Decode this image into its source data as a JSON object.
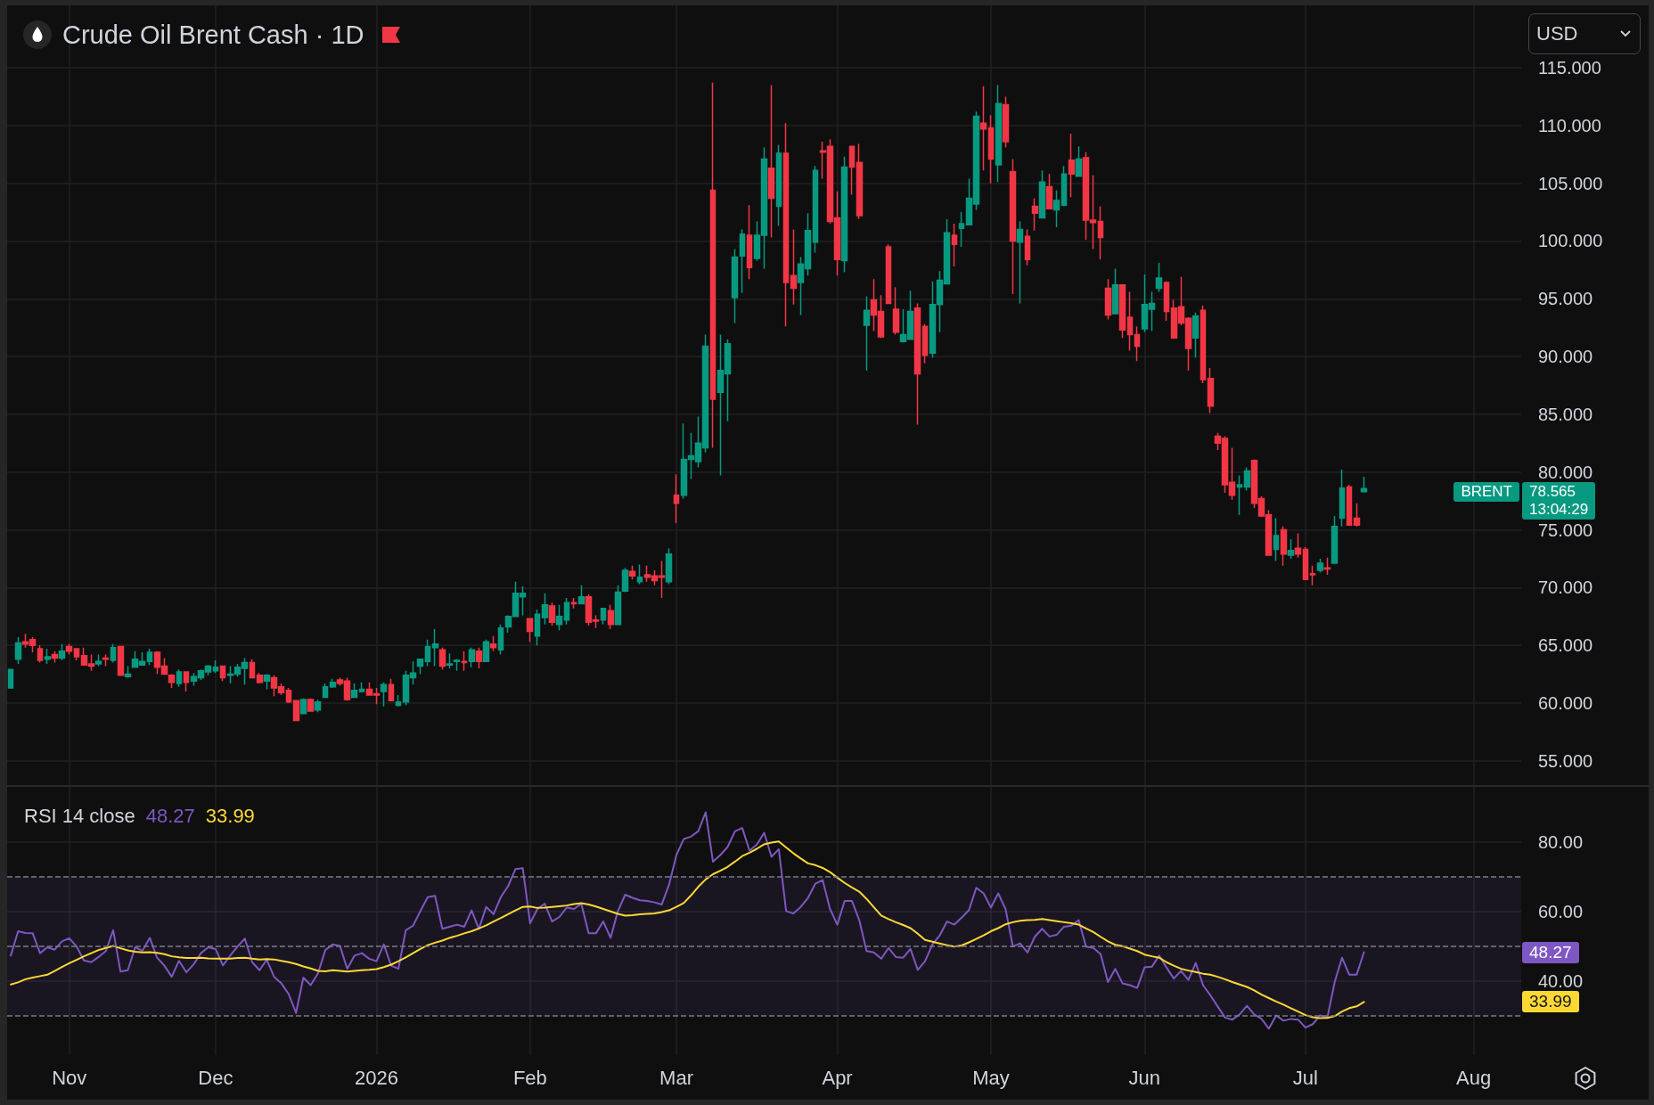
{
  "chart_data": [
    {
      "type": "candlestick",
      "title": "Crude Oil Brent Cash · 1D",
      "ylabel": "USD",
      "categories": [
        null,
        null,
        null,
        null,
        null,
        null,
        null,
        null,
        null,
        null,
        null,
        null,
        null,
        null,
        null,
        null,
        null,
        null,
        null,
        null,
        null,
        null,
        null,
        null,
        null,
        null,
        null,
        null,
        null,
        null,
        null,
        null,
        null,
        null,
        null,
        null,
        null,
        null,
        null,
        null,
        null,
        null,
        null,
        null,
        null,
        null,
        null,
        null,
        null,
        null,
        null,
        null,
        null,
        null,
        null,
        null,
        null,
        null,
        null,
        null,
        null,
        null,
        null,
        null,
        null,
        null,
        null,
        null,
        null,
        null,
        null,
        null,
        null,
        null,
        null,
        null,
        null,
        null,
        null,
        null,
        null,
        null,
        null,
        null,
        null,
        null,
        null,
        null,
        null,
        null,
        null,
        null,
        null,
        null,
        null,
        null,
        null,
        null,
        null,
        null,
        null,
        null,
        null,
        null,
        null,
        null,
        null,
        null,
        null,
        null,
        null,
        null,
        null,
        null,
        null,
        null,
        null,
        null,
        null,
        null,
        null,
        null,
        null,
        null,
        null,
        null,
        null,
        null,
        null,
        null,
        null,
        null,
        null,
        null,
        null,
        null,
        null,
        null,
        null,
        null,
        null,
        null,
        null,
        null,
        null,
        null,
        null,
        null,
        null,
        null,
        null,
        null,
        null,
        null,
        null,
        null,
        null,
        null,
        null,
        null,
        null,
        null,
        null,
        null,
        null,
        null,
        null,
        null,
        null,
        null,
        null,
        null,
        null,
        null,
        null,
        null,
        null,
        null,
        null,
        null,
        null,
        null,
        null,
        null,
        null,
        null,
        null,
        null,
        null,
        null,
        null,
        null,
        null,
        null,
        null,
        null,
        null,
        null,
        null,
        null,
        null,
        null,
        null,
        null,
        null,
        null,
        null
      ],
      "ohlc": [
        [
          61.3,
          62.9,
          61.3,
          62.9
        ],
        [
          63.8,
          65.7,
          63.4,
          65.2
        ],
        [
          65.3,
          66.0,
          64.8,
          65.1
        ],
        [
          65.5,
          65.7,
          64.4,
          65.0
        ],
        [
          64.7,
          65.0,
          63.5,
          63.7
        ],
        [
          63.8,
          64.7,
          63.4,
          64.0
        ],
        [
          64.2,
          64.5,
          63.5,
          63.9
        ],
        [
          63.9,
          65.1,
          63.7,
          64.5
        ],
        [
          64.9,
          65.1,
          64.2,
          64.5
        ],
        [
          64.7,
          64.7,
          63.7,
          64.0
        ],
        [
          64.1,
          64.8,
          63.3,
          63.3
        ],
        [
          63.4,
          64.2,
          62.8,
          63.2
        ],
        [
          63.4,
          64.2,
          63.2,
          63.6
        ],
        [
          63.9,
          64.2,
          63.2,
          63.8
        ],
        [
          63.7,
          65.1,
          63.5,
          64.8
        ],
        [
          64.9,
          64.9,
          62.4,
          62.4
        ],
        [
          62.3,
          63.2,
          62.2,
          62.5
        ],
        [
          63.1,
          64.5,
          63.1,
          63.8
        ],
        [
          63.3,
          64.4,
          63.3,
          63.6
        ],
        [
          63.6,
          64.7,
          63.3,
          64.4
        ],
        [
          64.4,
          64.5,
          62.5,
          63.1
        ],
        [
          63.2,
          63.9,
          62.5,
          62.5
        ],
        [
          62.4,
          62.5,
          61.3,
          61.8
        ],
        [
          61.7,
          62.9,
          61.4,
          62.7
        ],
        [
          62.7,
          62.7,
          61.0,
          61.8
        ],
        [
          61.9,
          62.6,
          61.5,
          62.3
        ],
        [
          62.2,
          62.9,
          62.0,
          62.8
        ],
        [
          62.7,
          63.3,
          62.4,
          63.2
        ],
        [
          62.8,
          63.7,
          62.6,
          63.1
        ],
        [
          63.2,
          63.2,
          61.9,
          62.2
        ],
        [
          62.4,
          63.2,
          61.7,
          62.5
        ],
        [
          62.5,
          63.4,
          62.3,
          63.1
        ],
        [
          63.0,
          63.9,
          61.6,
          63.5
        ],
        [
          63.5,
          63.8,
          62.2,
          62.2
        ],
        [
          62.4,
          62.6,
          61.7,
          61.8
        ],
        [
          61.9,
          62.5,
          61.2,
          62.4
        ],
        [
          62.2,
          62.4,
          60.6,
          61.3
        ],
        [
          61.4,
          61.7,
          60.7,
          60.9
        ],
        [
          61.1,
          61.3,
          60.0,
          60.1
        ],
        [
          60.2,
          60.2,
          58.5,
          58.5
        ],
        [
          59.1,
          60.4,
          59.1,
          60.3
        ],
        [
          60.3,
          60.4,
          59.3,
          59.3
        ],
        [
          59.4,
          60.3,
          59.2,
          60.1
        ],
        [
          60.5,
          61.7,
          60.5,
          61.4
        ],
        [
          61.4,
          62.1,
          61.3,
          61.8
        ],
        [
          62.0,
          62.2,
          61.5,
          61.7
        ],
        [
          61.9,
          62.2,
          60.2,
          60.3
        ],
        [
          60.5,
          61.7,
          60.5,
          61.1
        ],
        [
          61.0,
          61.8,
          60.9,
          61.2
        ],
        [
          61.2,
          61.8,
          60.7,
          60.7
        ],
        [
          60.8,
          61.3,
          59.9,
          60.7
        ],
        [
          61.0,
          61.8,
          59.7,
          61.6
        ],
        [
          61.6,
          62.1,
          60.2,
          60.2
        ],
        [
          59.8,
          60.7,
          59.7,
          60.1
        ],
        [
          60.1,
          62.8,
          59.8,
          62.4
        ],
        [
          62.2,
          63.6,
          61.6,
          62.6
        ],
        [
          63.2,
          63.8,
          62.5,
          63.8
        ],
        [
          63.6,
          65.5,
          63.2,
          64.9
        ],
        [
          64.8,
          66.4,
          63.2,
          65.1
        ],
        [
          64.6,
          64.8,
          62.9,
          63.2
        ],
        [
          63.3,
          64.3,
          63.0,
          63.4
        ],
        [
          63.6,
          63.8,
          62.8,
          63.7
        ],
        [
          63.6,
          64.5,
          62.8,
          63.5
        ],
        [
          63.6,
          64.8,
          63.1,
          64.6
        ],
        [
          64.5,
          64.8,
          63.0,
          63.6
        ],
        [
          63.6,
          65.5,
          63.6,
          65.3
        ],
        [
          65.1,
          65.8,
          64.5,
          64.8
        ],
        [
          64.6,
          66.8,
          64.2,
          66.5
        ],
        [
          66.6,
          67.6,
          66.1,
          67.5
        ],
        [
          67.5,
          70.5,
          67.5,
          69.5
        ],
        [
          69.2,
          70.1,
          67.6,
          69.5
        ],
        [
          67.3,
          67.3,
          65.3,
          66.2
        ],
        [
          65.8,
          68.1,
          65.0,
          67.7
        ],
        [
          67.4,
          69.5,
          66.8,
          68.5
        ],
        [
          68.4,
          68.7,
          66.7,
          67.0
        ],
        [
          66.8,
          68.5,
          66.3,
          67.5
        ],
        [
          67.2,
          69.1,
          66.8,
          68.7
        ],
        [
          68.7,
          69.1,
          68.2,
          68.6
        ],
        [
          68.6,
          70.2,
          68.6,
          69.2
        ],
        [
          69.2,
          69.4,
          66.7,
          67.0
        ],
        [
          67.2,
          67.6,
          66.5,
          67.1
        ],
        [
          67.2,
          68.2,
          66.8,
          68.2
        ],
        [
          68.0,
          68.5,
          66.4,
          66.8
        ],
        [
          66.8,
          70.2,
          66.8,
          69.6
        ],
        [
          69.7,
          71.7,
          69.6,
          71.5
        ],
        [
          71.4,
          71.9,
          70.7,
          71.0
        ],
        [
          70.5,
          72.0,
          70.3,
          70.9
        ],
        [
          71.1,
          71.9,
          70.5,
          70.9
        ],
        [
          71.0,
          71.5,
          70.2,
          70.6
        ],
        [
          71.0,
          72.3,
          69.1,
          70.9
        ],
        [
          70.5,
          73.4,
          70.3,
          72.9
        ],
        [
          78.0,
          79.8,
          75.6,
          77.3
        ],
        [
          78.0,
          84.2,
          77.7,
          81.1
        ],
        [
          81.1,
          83.4,
          79.4,
          81.4
        ],
        [
          80.9,
          84.8,
          80.4,
          82.5
        ],
        [
          82.1,
          91.9,
          81.7,
          90.9
        ],
        [
          104.4,
          113.7,
          82.1,
          86.3
        ],
        [
          86.9,
          91.9,
          79.7,
          88.8
        ],
        [
          88.5,
          91.5,
          84.4,
          91.1
        ],
        [
          95.1,
          99.3,
          92.9,
          98.6
        ],
        [
          98.7,
          101.0,
          95.5,
          100.6
        ],
        [
          100.5,
          103.1,
          96.7,
          97.7
        ],
        [
          98.5,
          101.7,
          98.3,
          100.5
        ],
        [
          100.5,
          108.1,
          97.6,
          107.1
        ],
        [
          106.3,
          113.5,
          100.3,
          103.7
        ],
        [
          103.0,
          108.3,
          101.3,
          107.6
        ],
        [
          107.6,
          110.2,
          92.6,
          96.4
        ],
        [
          97.0,
          101.0,
          94.5,
          95.9
        ],
        [
          96.4,
          98.6,
          93.6,
          98.0
        ],
        [
          97.6,
          102.4,
          97.0,
          100.9
        ],
        [
          99.9,
          106.5,
          99.0,
          106.1
        ],
        [
          107.8,
          108.6,
          105.4,
          107.7
        ],
        [
          108.2,
          108.8,
          101.5,
          101.7
        ],
        [
          102.0,
          104.3,
          97.0,
          98.4
        ],
        [
          98.3,
          107.3,
          97.3,
          106.4
        ],
        [
          108.2,
          108.2,
          104.0,
          106.4
        ],
        [
          106.8,
          108.4,
          101.9,
          102.2
        ],
        [
          92.7,
          95.2,
          88.8,
          94.0
        ],
        [
          94.9,
          96.7,
          92.2,
          93.6
        ],
        [
          93.9,
          95.3,
          91.6,
          91.7
        ],
        [
          99.5,
          99.7,
          94.6,
          94.6
        ],
        [
          94.1,
          96.0,
          91.9,
          92.1
        ],
        [
          91.3,
          94.1,
          91.2,
          91.9
        ],
        [
          91.5,
          95.7,
          91.5,
          93.9
        ],
        [
          94.2,
          94.6,
          84.1,
          88.5
        ],
        [
          92.6,
          92.8,
          89.4,
          90.1
        ],
        [
          90.3,
          96.5,
          89.9,
          94.5
        ],
        [
          94.5,
          97.4,
          92.1,
          96.6
        ],
        [
          96.3,
          101.9,
          96.3,
          100.7
        ],
        [
          100.5,
          101.5,
          97.8,
          99.7
        ],
        [
          101.1,
          102.5,
          99.5,
          101.5
        ],
        [
          101.4,
          105.4,
          101.4,
          103.7
        ],
        [
          103.2,
          111.2,
          102.7,
          110.8
        ],
        [
          110.2,
          113.4,
          106.1,
          109.7
        ],
        [
          109.8,
          110.9,
          105.0,
          107.1
        ],
        [
          106.6,
          113.5,
          105.1,
          111.9
        ],
        [
          111.8,
          112.5,
          108.1,
          108.6
        ],
        [
          106.0,
          107.1,
          95.4,
          100.0
        ],
        [
          99.9,
          101.7,
          94.6,
          101.0
        ],
        [
          100.4,
          101.0,
          97.9,
          98.4
        ],
        [
          103.0,
          103.7,
          100.9,
          102.4
        ],
        [
          102.0,
          106.1,
          102.0,
          105.1
        ],
        [
          104.7,
          105.8,
          102.8,
          102.8
        ],
        [
          102.7,
          104.4,
          101.2,
          103.5
        ],
        [
          103.1,
          106.5,
          103.0,
          105.8
        ],
        [
          107.0,
          109.3,
          103.8,
          105.8
        ],
        [
          105.6,
          108.2,
          105.6,
          107.1
        ],
        [
          107.2,
          107.7,
          100.1,
          101.8
        ],
        [
          101.8,
          105.7,
          99.3,
          101.6
        ],
        [
          101.7,
          103.0,
          98.4,
          100.3
        ],
        [
          95.9,
          96.7,
          93.2,
          93.6
        ],
        [
          93.7,
          97.6,
          93.7,
          96.2
        ],
        [
          96.2,
          96.2,
          91.6,
          92.3
        ],
        [
          93.4,
          95.6,
          90.5,
          91.9
        ],
        [
          91.9,
          92.6,
          89.6,
          90.9
        ],
        [
          92.4,
          97.1,
          92.1,
          94.5
        ],
        [
          94.1,
          95.6,
          92.2,
          94.6
        ],
        [
          95.9,
          98.1,
          95.6,
          96.8
        ],
        [
          96.4,
          96.5,
          93.1,
          93.9
        ],
        [
          94.2,
          94.9,
          91.6,
          91.6
        ],
        [
          94.3,
          96.9,
          92.7,
          92.9
        ],
        [
          93.3,
          93.4,
          88.8,
          90.7
        ],
        [
          91.6,
          93.8,
          89.9,
          93.5
        ],
        [
          94.0,
          94.4,
          87.7,
          88.0
        ],
        [
          88.1,
          89.0,
          85.1,
          85.7
        ],
        [
          83.1,
          83.4,
          81.9,
          82.5
        ],
        [
          82.9,
          83.1,
          78.2,
          78.9
        ],
        [
          79.1,
          82.1,
          77.6,
          78.0
        ],
        [
          78.7,
          79.7,
          76.3,
          78.9
        ],
        [
          78.7,
          80.4,
          78.4,
          80.1
        ],
        [
          81.0,
          81.1,
          76.9,
          77.3
        ],
        [
          77.7,
          77.9,
          76.1,
          76.2
        ],
        [
          76.3,
          76.7,
          72.8,
          72.8
        ],
        [
          73.3,
          76.0,
          72.3,
          74.5
        ],
        [
          75.0,
          75.3,
          71.9,
          72.9
        ],
        [
          72.8,
          74.2,
          72.5,
          73.2
        ],
        [
          73.4,
          74.7,
          72.6,
          72.9
        ],
        [
          73.3,
          73.5,
          70.7,
          70.7
        ],
        [
          71.2,
          71.9,
          70.2,
          71.1
        ],
        [
          71.5,
          72.5,
          71.3,
          72.1
        ],
        [
          71.7,
          72.6,
          71.1,
          71.6
        ],
        [
          72.1,
          76.2,
          72.1,
          75.3
        ],
        [
          76.0,
          80.2,
          75.3,
          78.6
        ],
        [
          78.7,
          78.9,
          75.4,
          75.4
        ],
        [
          76.0,
          77.3,
          75.3,
          75.4
        ],
        [
          78.3,
          79.6,
          78.3,
          78.565
        ],
        null,
        null,
        null,
        null,
        null,
        null,
        null,
        null,
        null,
        null,
        null,
        null,
        null,
        null,
        null,
        null,
        null,
        null,
        null,
        null,
        null
      ],
      "colors": [
        "#089981",
        "#089981",
        "#f23645",
        "#f23645",
        "#f23645",
        "#089981",
        "#f23645",
        "#089981",
        "#f23645",
        "#f23645",
        "#f23645",
        "#f23645",
        "#089981",
        "#f23645",
        "#089981",
        "#f23645",
        "#089981",
        "#089981",
        "#089981",
        "#089981",
        "#f23645",
        "#f23645",
        "#f23645",
        "#089981",
        "#f23645",
        "#089981",
        "#089981",
        "#089981",
        "#089981",
        "#f23645",
        "#089981",
        "#089981",
        "#089981",
        "#f23645",
        "#f23645",
        "#089981",
        "#f23645",
        "#f23645",
        "#f23645",
        "#f23645",
        "#089981",
        "#f23645",
        "#089981",
        "#089981",
        "#089981",
        "#f23645",
        "#f23645",
        "#089981",
        "#089981",
        "#f23645",
        "#f23645",
        "#089981",
        "#f23645",
        "#089981",
        "#089981",
        "#089981",
        "#089981",
        "#089981",
        "#089981",
        "#f23645",
        "#089981",
        "#089981",
        "#f23645",
        "#089981",
        "#f23645",
        "#089981",
        "#f23645",
        "#089981",
        "#089981",
        "#089981",
        "#089981",
        "#f23645",
        "#089981",
        "#089981",
        "#f23645",
        "#089981",
        "#089981",
        "#f23645",
        "#089981",
        "#f23645",
        "#f23645",
        "#089981",
        "#f23645",
        "#089981",
        "#089981",
        "#f23645",
        "#089981",
        "#f23645",
        "#f23645",
        "#f23645",
        "#089981",
        "#f23645",
        "#089981",
        "#089981",
        "#089981",
        "#089981",
        "#f23645",
        "#089981",
        "#089981",
        "#089981",
        "#089981",
        "#f23645",
        "#089981",
        "#089981",
        "#f23645",
        "#089981",
        "#f23645",
        "#f23645",
        "#089981",
        "#089981",
        "#089981",
        "#f23645",
        "#f23645",
        "#f23645",
        "#089981",
        "#f23645",
        "#f23645",
        "#089981",
        "#f23645",
        "#f23645",
        "#f23645",
        "#f23645",
        "#089981",
        "#089981",
        "#f23645",
        "#f23645",
        "#089981",
        "#089981",
        "#089981",
        "#f23645",
        "#089981",
        "#089981",
        "#089981",
        "#f23645",
        "#f23645",
        "#089981",
        "#f23645",
        "#f23645",
        "#089981",
        "#f23645",
        "#f23645",
        "#089981",
        "#f23645",
        "#089981",
        "#089981",
        "#f23645",
        "#089981",
        "#f23645",
        "#f23645",
        "#f23645",
        "#f23645",
        "#089981",
        "#f23645",
        "#f23645",
        "#f23645",
        "#089981",
        "#089981",
        "#089981",
        "#f23645",
        "#f23645",
        "#f23645",
        "#f23645",
        "#089981",
        "#f23645",
        "#f23645",
        "#f23645",
        "#f23645",
        "#f23645",
        "#089981",
        "#089981",
        "#f23645",
        "#f23645",
        "#f23645",
        "#089981",
        "#f23645",
        "#089981",
        "#f23645",
        "#f23645",
        "#f23645",
        "#089981",
        "#f23645",
        "#089981",
        "#089981",
        "#f23645",
        "#f23645",
        "#089981",
        null,
        null,
        null,
        null,
        null,
        null,
        null,
        null,
        null,
        null,
        null,
        null,
        null,
        null,
        null,
        null,
        null,
        null,
        null,
        null,
        null
      ],
      "ylim": [
        52.9,
        120.4
      ],
      "yticks": [
        {
          "value": 55,
          "label": "55.000"
        },
        {
          "value": 60,
          "label": "60.000"
        },
        {
          "value": 65,
          "label": "65.000"
        },
        {
          "value": 70,
          "label": "70.000"
        },
        {
          "value": 75,
          "label": "75.000"
        },
        {
          "value": 80,
          "label": "80.000"
        },
        {
          "value": 85,
          "label": "85.000"
        },
        {
          "value": 90,
          "label": "90.000"
        },
        {
          "value": 95,
          "label": "95.000"
        },
        {
          "value": 100,
          "label": "100.000"
        },
        {
          "value": 105,
          "label": "105.000"
        },
        {
          "value": 110,
          "label": "110.000"
        },
        {
          "value": 115,
          "label": "115.000"
        }
      ],
      "grid": true,
      "tick_labels": "y",
      "annotations": [
        "BRENT",
        "78.565",
        "13:04:29"
      ]
    },
    {
      "type": "line",
      "title": "RSI 14 close",
      "categories": [
        null,
        null,
        null,
        null,
        null,
        null,
        null,
        null,
        "Nov",
        null,
        null,
        null,
        null,
        null,
        null,
        null,
        null,
        null,
        null,
        null,
        null,
        null,
        null,
        null,
        null,
        null,
        null,
        null,
        "Dec",
        null,
        null,
        null,
        null,
        null,
        null,
        null,
        null,
        null,
        null,
        null,
        null,
        null,
        null,
        null,
        null,
        null,
        null,
        null,
        null,
        null,
        "2026",
        null,
        null,
        null,
        null,
        null,
        null,
        null,
        null,
        null,
        null,
        null,
        null,
        null,
        null,
        null,
        null,
        null,
        null,
        null,
        null,
        "Feb",
        null,
        null,
        null,
        null,
        null,
        null,
        null,
        null,
        null,
        null,
        null,
        null,
        null,
        null,
        null,
        null,
        null,
        null,
        null,
        "Mar",
        null,
        null,
        null,
        null,
        null,
        null,
        null,
        null,
        null,
        null,
        null,
        null,
        null,
        null,
        null,
        null,
        null,
        null,
        null,
        null,
        null,
        "Apr",
        null,
        null,
        null,
        null,
        null,
        null,
        null,
        null,
        null,
        null,
        null,
        null,
        null,
        null,
        null,
        null,
        null,
        null,
        null,
        null,
        "May",
        null,
        null,
        null,
        null,
        null,
        null,
        null,
        null,
        null,
        null,
        null,
        null,
        null,
        null,
        null,
        null,
        null,
        null,
        null,
        null,
        "Jun",
        null,
        null,
        null,
        null,
        null,
        null,
        null,
        null,
        null,
        null,
        null,
        null,
        null,
        null,
        null,
        null,
        null,
        null,
        null,
        null,
        null,
        "Jul",
        null,
        null,
        null,
        null,
        null,
        null,
        null,
        null,
        null,
        null,
        null,
        null,
        null,
        null,
        null,
        null,
        null,
        null,
        null,
        null,
        null,
        null,
        "Aug",
        null,
        null,
        null,
        null,
        null,
        null
      ],
      "series": [
        {
          "color": "#7e57c2",
          "values": [
            47.3,
            54.3,
            53.8,
            53.7,
            48.0,
            49.7,
            49.0,
            51.4,
            52.3,
            49.9,
            45.9,
            45.4,
            46.9,
            48.6,
            54.6,
            42.7,
            43.1,
            49.7,
            48.7,
            52.4,
            46.7,
            44.4,
            41.2,
            45.8,
            42.5,
            44.8,
            48.0,
            49.7,
            49.2,
            44.5,
            47.3,
            49.9,
            52.2,
            45.4,
            43.1,
            46.1,
            41.2,
            39.3,
            36.2,
            30.8,
            41.0,
            38.8,
            42.2,
            48.9,
            50.5,
            50.1,
            43.5,
            47.3,
            48.0,
            46.4,
            45.7,
            50.5,
            44.4,
            43.5,
            54.6,
            55.9,
            60.1,
            64.1,
            64.5,
            55.0,
            55.6,
            56.2,
            55.6,
            60.3,
            55.0,
            61.3,
            59.2,
            64.1,
            67.3,
            72.2,
            72.4,
            56.6,
            60.7,
            62.2,
            57.1,
            58.4,
            61.1,
            60.7,
            62.2,
            53.7,
            53.7,
            57.1,
            52.4,
            60.1,
            64.8,
            63.9,
            63.2,
            63.0,
            62.6,
            62.0,
            67.7,
            76.2,
            80.8,
            81.5,
            83.1,
            88.5,
            74.3,
            76.2,
            78.5,
            83.0,
            84.0,
            77.5,
            79.2,
            82.6,
            75.7,
            77.9,
            60.1,
            59.4,
            61.3,
            63.9,
            68.0,
            69.0,
            60.7,
            56.2,
            63.0,
            63.0,
            57.5,
            48.6,
            48.2,
            46.4,
            49.5,
            46.9,
            46.7,
            49.2,
            43.2,
            45.7,
            50.5,
            53.1,
            57.1,
            56.2,
            58.2,
            60.4,
            66.8,
            65.2,
            61.1,
            65.2,
            60.7,
            49.9,
            50.8,
            48.2,
            52.7,
            55.0,
            52.8,
            53.3,
            55.6,
            55.9,
            57.5,
            49.9,
            49.5,
            47.7,
            39.7,
            43.5,
            39.3,
            38.8,
            38.0,
            43.9,
            44.1,
            47.3,
            43.9,
            40.7,
            42.9,
            40.3,
            45.2,
            38.8,
            35.9,
            32.7,
            29.5,
            28.9,
            30.4,
            32.9,
            30.4,
            29.1,
            26.3,
            30.1,
            28.6,
            29.1,
            28.9,
            26.6,
            27.6,
            30.1,
            29.5,
            39.7,
            46.7,
            41.8,
            41.8,
            48.27,
            null,
            null,
            null,
            null,
            null,
            null,
            null,
            null,
            null,
            null,
            null,
            null,
            null,
            null,
            null,
            null,
            null,
            null,
            null,
            null,
            null
          ]
        },
        {
          "color": "#fdd835",
          "values": [
            39.0,
            39.6,
            40.5,
            41.0,
            41.4,
            41.8,
            42.9,
            44.0,
            45.1,
            46.1,
            47.1,
            48.0,
            48.9,
            49.5,
            50.1,
            49.4,
            48.8,
            48.4,
            48.2,
            48.3,
            48.1,
            47.7,
            47.1,
            46.8,
            46.6,
            46.6,
            46.7,
            46.5,
            46.4,
            46.4,
            46.4,
            46.6,
            46.7,
            46.4,
            46.2,
            46.3,
            46.2,
            45.8,
            45.4,
            44.9,
            44.2,
            43.6,
            42.9,
            42.8,
            43.1,
            42.9,
            42.7,
            42.9,
            43.1,
            43.2,
            43.4,
            44.0,
            44.7,
            45.7,
            46.8,
            48.0,
            49.2,
            50.3,
            51.0,
            51.6,
            52.4,
            53.0,
            53.7,
            54.3,
            55.1,
            56.0,
            57.1,
            58.1,
            59.2,
            60.3,
            61.3,
            61.4,
            61.0,
            61.1,
            61.3,
            61.5,
            61.7,
            62.1,
            62.4,
            62.0,
            61.4,
            60.7,
            60.0,
            59.3,
            58.8,
            58.9,
            59.2,
            59.3,
            59.4,
            59.8,
            60.3,
            61.3,
            62.4,
            64.6,
            67.1,
            69.2,
            70.7,
            71.7,
            72.8,
            74.3,
            75.9,
            76.9,
            78.0,
            79.3,
            79.8,
            80.1,
            78.4,
            76.7,
            75.2,
            73.8,
            73.3,
            72.5,
            71.3,
            69.7,
            68.2,
            66.9,
            65.7,
            63.6,
            61.2,
            58.8,
            57.8,
            56.9,
            56.1,
            55.2,
            53.6,
            51.8,
            51.3,
            50.8,
            50.3,
            49.9,
            50.2,
            51.1,
            52.1,
            53.1,
            54.3,
            55.2,
            56.3,
            56.9,
            57.3,
            57.5,
            57.6,
            57.8,
            57.5,
            57.2,
            56.9,
            56.6,
            56.2,
            55.1,
            54.1,
            52.7,
            51.4,
            50.4,
            50.0,
            49.3,
            48.6,
            47.6,
            47.1,
            46.7,
            45.4,
            44.4,
            43.5,
            43.0,
            42.6,
            42.1,
            41.8,
            41.2,
            40.5,
            39.7,
            39.0,
            38.3,
            37.3,
            36.1,
            35.1,
            34.1,
            33.2,
            32.2,
            31.2,
            30.2,
            29.6,
            29.3,
            29.4,
            29.9,
            31.2,
            32.2,
            32.7,
            33.99,
            null,
            null,
            null,
            null,
            null,
            null,
            null,
            null,
            null,
            null,
            null,
            null,
            null,
            null,
            null,
            null,
            null,
            null,
            null,
            null,
            null
          ]
        }
      ],
      "ylim": [
        18.7,
        95.8
      ],
      "yticks": [
        {
          "value": 40,
          "label": "40.00"
        },
        {
          "value": 60,
          "label": "60.00"
        },
        {
          "value": 80,
          "label": "80.00"
        }
      ],
      "grid": true,
      "marker": "none",
      "ref_lines": [
        {
          "axis": "y",
          "value": 70,
          "color": "#787b86",
          "line_style": "dashed"
        },
        {
          "axis": "y",
          "value": 50,
          "color": "#787b86",
          "line_style": "dashed"
        },
        {
          "axis": "y",
          "value": 30,
          "color": "#787b86",
          "line_style": "dashed"
        }
      ],
      "bands": [
        {
          "axis": "y",
          "from": 30,
          "to": 70,
          "color": "#7e57c2"
        }
      ],
      "annotations": [
        "48.27",
        "33.99"
      ]
    }
  ]
}
